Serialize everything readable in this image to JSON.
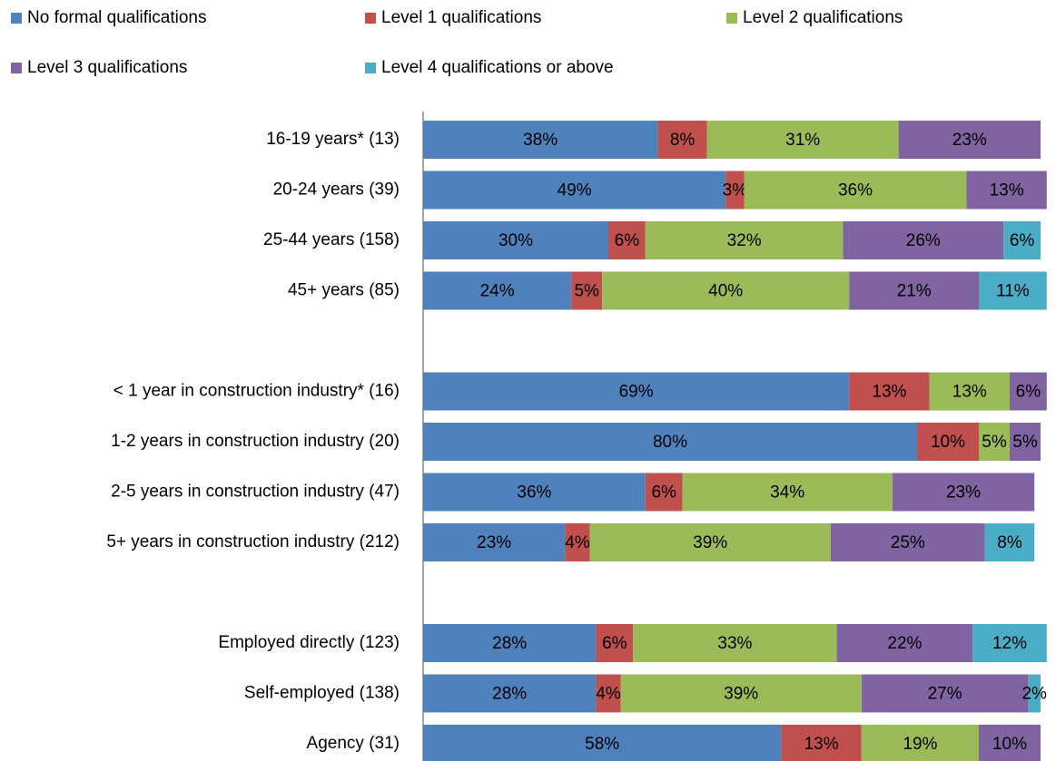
{
  "chart_data": {
    "type": "stacked-bar-horizontal",
    "categories": [
      "16-19 years* (13)",
      "20-24 years (39)",
      "25-44 years (158)",
      "45+ years (85)",
      null,
      "< 1 year in construction industry* (16)",
      "1-2 years in construction industry (20)",
      "2-5 years in construction industry (47)",
      "5+ years in construction industry (212)",
      null,
      "Employed directly (123)",
      "Self-employed (138)",
      "Agency (31)"
    ],
    "xlim": [
      0,
      100
    ],
    "legend": "top",
    "series": [
      {
        "name": "No formal qualifications",
        "color": "#4f81bd",
        "values": [
          38,
          49,
          30,
          24,
          null,
          69,
          80,
          36,
          23,
          null,
          28,
          28,
          58
        ],
        "value_labels": [
          "38%",
          "49%",
          "30%",
          "24%",
          null,
          "69%",
          "80%",
          "36%",
          "23%",
          null,
          "28%",
          "28%",
          "58%"
        ]
      },
      {
        "name": "Level 1 qualifications",
        "color": "#c0504d",
        "values": [
          8,
          3,
          6,
          5,
          null,
          13,
          10,
          6,
          4,
          null,
          6,
          4,
          13
        ],
        "value_labels": [
          "8%",
          "3%",
          "6%",
          "5%",
          null,
          "13%",
          "10%",
          "6%",
          "4%",
          null,
          "6%",
          "4%",
          "13%"
        ]
      },
      {
        "name": "Level 2 qualifications",
        "color": "#9bbb59",
        "values": [
          31,
          36,
          32,
          40,
          null,
          13,
          5,
          34,
          39,
          null,
          33,
          39,
          19
        ],
        "value_labels": [
          "31%",
          "36%",
          "32%",
          "40%",
          null,
          "13%",
          "5%",
          "34%",
          "39%",
          null,
          "33%",
          "39%",
          "19%"
        ]
      },
      {
        "name": "Level 3 qualifications",
        "color": "#8064a2",
        "values": [
          23,
          13,
          26,
          21,
          null,
          6,
          5,
          23,
          25,
          null,
          22,
          27,
          10
        ],
        "value_labels": [
          "23%",
          "13%",
          "26%",
          "21%",
          null,
          "6%",
          "5%",
          "23%",
          "25%",
          null,
          "22%",
          "27%",
          "10%"
        ]
      },
      {
        "name": "Level 4 qualifications or above",
        "color": "#4bacc6",
        "values": [
          null,
          null,
          6,
          11,
          null,
          null,
          null,
          null,
          8,
          null,
          12,
          2,
          null
        ],
        "value_labels": [
          null,
          null,
          "6%",
          "11%",
          null,
          null,
          null,
          null,
          "8%",
          null,
          "12%",
          "2%",
          null
        ]
      }
    ]
  }
}
